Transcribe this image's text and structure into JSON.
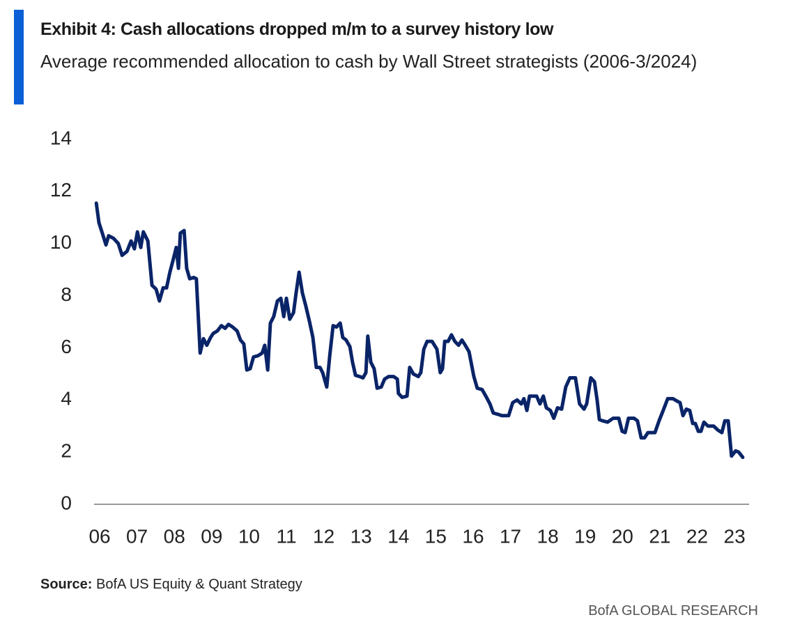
{
  "chart_data": {
    "type": "line",
    "title": "Exhibit 4: Cash allocations dropped m/m to a survey history low",
    "subtitle": "Average recommended allocation to cash by Wall Street strategists (2006-3/2024)",
    "source_label": "Source:",
    "source": "BofA US Equity & Quant Strategy",
    "brand": "BofA GLOBAL RESEARCH",
    "xlim": [
      2005.85,
      2023.39
    ],
    "xticks": [
      {
        "value": 2006,
        "label": "06"
      },
      {
        "value": 2007,
        "label": "07"
      },
      {
        "value": 2008,
        "label": "08"
      },
      {
        "value": 2009,
        "label": "09"
      },
      {
        "value": 2010,
        "label": "10"
      },
      {
        "value": 2011,
        "label": "11"
      },
      {
        "value": 2012,
        "label": "12"
      },
      {
        "value": 2013,
        "label": "13"
      },
      {
        "value": 2014,
        "label": "14"
      },
      {
        "value": 2015,
        "label": "15"
      },
      {
        "value": 2016,
        "label": "16"
      },
      {
        "value": 2017,
        "label": "17"
      },
      {
        "value": 2018,
        "label": "18"
      },
      {
        "value": 2019,
        "label": "19"
      },
      {
        "value": 2020,
        "label": "20"
      },
      {
        "value": 2021,
        "label": "21"
      },
      {
        "value": 2022,
        "label": "22"
      },
      {
        "value": 2023,
        "label": "23"
      }
    ],
    "ylim": [
      0,
      14
    ],
    "yticks": [
      0,
      2,
      4,
      6,
      8,
      10,
      12,
      14
    ],
    "grid": false,
    "series": [
      {
        "color": "#0a2468",
        "x": [
          2005.91,
          2005.98,
          2006.07,
          2006.17,
          2006.24,
          2006.37,
          2006.5,
          2006.6,
          2006.73,
          2006.84,
          2006.93,
          2007.01,
          2007.1,
          2007.17,
          2007.29,
          2007.4,
          2007.51,
          2007.6,
          2007.7,
          2007.79,
          2007.88,
          2007.98,
          2008.05,
          2008.11,
          2008.16,
          2008.26,
          2008.33,
          2008.41,
          2008.52,
          2008.59,
          2008.69,
          2008.78,
          2008.87,
          2008.97,
          2009.04,
          2009.15,
          2009.26,
          2009.36,
          2009.45,
          2009.56,
          2009.68,
          2009.77,
          2009.86,
          2009.94,
          2010.03,
          2010.12,
          2010.24,
          2010.35,
          2010.42,
          2010.5,
          2010.57,
          2010.66,
          2010.76,
          2010.85,
          2010.93,
          2011.0,
          2011.09,
          2011.19,
          2011.26,
          2011.34,
          2011.43,
          2011.52,
          2011.62,
          2011.71,
          2011.8,
          2011.9,
          2011.97,
          2012.08,
          2012.16,
          2012.25,
          2012.34,
          2012.44,
          2012.51,
          2012.6,
          2012.7,
          2012.77,
          2012.85,
          2012.96,
          2013.05,
          2013.13,
          2013.18,
          2013.26,
          2013.35,
          2013.43,
          2013.54,
          2013.63,
          2013.74,
          2013.87,
          2013.97,
          2014.0,
          2014.1,
          2014.23,
          2014.3,
          2014.4,
          2014.53,
          2014.6,
          2014.68,
          2014.77,
          2014.9,
          2015.03,
          2015.12,
          2015.18,
          2015.24,
          2015.33,
          2015.42,
          2015.51,
          2015.61,
          2015.7,
          2015.79,
          2015.89,
          2016.02,
          2016.11,
          2016.24,
          2016.34,
          2016.45,
          2016.54,
          2016.67,
          2016.77,
          2016.95,
          2017.06,
          2017.18,
          2017.29,
          2017.36,
          2017.44,
          2017.51,
          2017.7,
          2017.79,
          2017.88,
          2017.96,
          2018.07,
          2018.16,
          2018.26,
          2018.37,
          2018.48,
          2018.59,
          2018.74,
          2018.85,
          2018.97,
          2019.04,
          2019.15,
          2019.25,
          2019.32,
          2019.38,
          2019.47,
          2019.6,
          2019.75,
          2019.9,
          2019.99,
          2020.07,
          2020.16,
          2020.31,
          2020.4,
          2020.5,
          2020.59,
          2020.68,
          2020.87,
          2020.98,
          2021.09,
          2021.21,
          2021.35,
          2021.47,
          2021.54,
          2021.62,
          2021.71,
          2021.8,
          2021.88,
          2021.95,
          2022.03,
          2022.1,
          2022.18,
          2022.29,
          2022.44,
          2022.55,
          2022.66,
          2022.74,
          2022.83,
          2022.92,
          2023.03,
          2023.11,
          2023.22
        ],
        "values": [
          11.55,
          10.8,
          10.4,
          9.95,
          10.3,
          10.2,
          10.0,
          9.55,
          9.7,
          10.1,
          9.8,
          10.45,
          9.85,
          10.45,
          10.1,
          8.4,
          8.25,
          7.8,
          8.3,
          8.3,
          8.9,
          9.45,
          9.85,
          9.05,
          10.4,
          10.5,
          9.05,
          8.65,
          8.7,
          8.65,
          5.8,
          6.35,
          6.1,
          6.4,
          6.55,
          6.65,
          6.85,
          6.75,
          6.9,
          6.8,
          6.65,
          6.3,
          6.15,
          5.15,
          5.2,
          5.65,
          5.7,
          5.8,
          6.1,
          5.15,
          6.95,
          7.2,
          7.8,
          7.9,
          7.2,
          7.9,
          7.1,
          7.35,
          8.1,
          8.9,
          8.1,
          7.6,
          7.0,
          6.4,
          5.25,
          5.25,
          5.05,
          4.5,
          5.7,
          6.85,
          6.8,
          6.95,
          6.4,
          6.3,
          6.05,
          5.45,
          4.95,
          4.9,
          4.85,
          5.05,
          6.45,
          5.45,
          5.2,
          4.45,
          4.5,
          4.8,
          4.9,
          4.9,
          4.8,
          4.25,
          4.1,
          4.15,
          5.25,
          5.0,
          4.9,
          5.05,
          5.95,
          6.25,
          6.25,
          5.95,
          5.05,
          5.2,
          6.25,
          6.25,
          6.5,
          6.25,
          6.1,
          6.3,
          6.1,
          5.85,
          4.9,
          4.45,
          4.4,
          4.15,
          3.85,
          3.5,
          3.45,
          3.4,
          3.4,
          3.9,
          4.0,
          3.85,
          4.05,
          3.6,
          4.15,
          4.15,
          3.85,
          4.15,
          3.7,
          3.6,
          3.3,
          3.7,
          3.65,
          4.5,
          4.85,
          4.85,
          3.85,
          3.65,
          3.85,
          4.85,
          4.7,
          4.0,
          3.25,
          3.2,
          3.15,
          3.3,
          3.3,
          2.8,
          2.75,
          3.3,
          3.3,
          3.2,
          2.55,
          2.55,
          2.75,
          2.75,
          3.2,
          3.6,
          4.05,
          4.05,
          3.95,
          3.9,
          3.4,
          3.65,
          3.6,
          3.1,
          3.1,
          2.8,
          2.8,
          3.15,
          3.0,
          3.0,
          2.85,
          2.75,
          3.2,
          3.2,
          1.85,
          2.05,
          2.0,
          1.8
        ]
      }
    ]
  }
}
